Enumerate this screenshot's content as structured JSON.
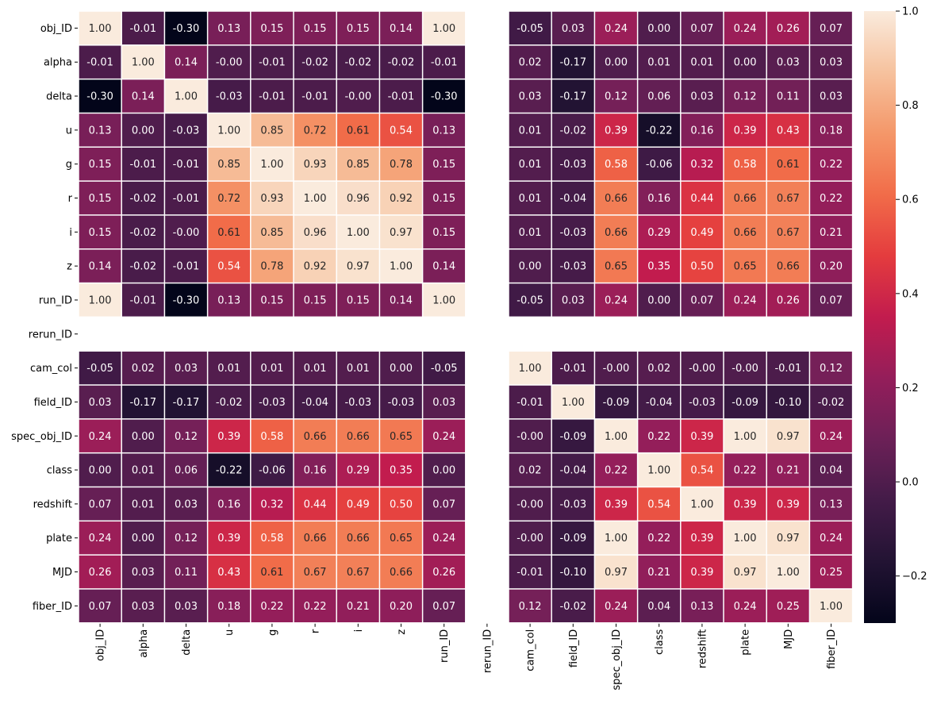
{
  "chart_data": {
    "type": "heatmap",
    "title": "",
    "xlabel": "",
    "ylabel": "",
    "labels": [
      "obj_ID",
      "alpha",
      "delta",
      "u",
      "g",
      "r",
      "i",
      "z",
      "run_ID",
      "rerun_ID",
      "cam_col",
      "field_ID",
      "spec_obj_ID",
      "class",
      "redshift",
      "plate",
      "MJD",
      "fiber_ID"
    ],
    "values": [
      [
        1.0,
        -0.01,
        -0.3,
        0.13,
        0.15,
        0.15,
        0.15,
        0.14,
        1.0,
        null,
        -0.05,
        0.03,
        0.24,
        0.0,
        0.07,
        0.24,
        0.26,
        0.07
      ],
      [
        -0.01,
        1.0,
        0.14,
        -0.0,
        -0.01,
        -0.02,
        -0.02,
        -0.02,
        -0.01,
        null,
        0.02,
        -0.17,
        0.0,
        0.01,
        0.01,
        0.0,
        0.03,
        0.03
      ],
      [
        -0.3,
        0.14,
        1.0,
        -0.03,
        -0.01,
        -0.01,
        -0.0,
        -0.01,
        -0.3,
        null,
        0.03,
        -0.17,
        0.12,
        0.06,
        0.03,
        0.12,
        0.11,
        0.03
      ],
      [
        0.13,
        -0.0,
        -0.03,
        1.0,
        0.85,
        0.72,
        0.61,
        0.54,
        0.13,
        null,
        0.01,
        -0.02,
        0.39,
        -0.22,
        0.16,
        0.39,
        0.43,
        0.18
      ],
      [
        0.15,
        -0.01,
        -0.01,
        0.85,
        1.0,
        0.93,
        0.85,
        0.78,
        0.15,
        null,
        0.01,
        -0.03,
        0.58,
        -0.06,
        0.32,
        0.58,
        0.61,
        0.22
      ],
      [
        0.15,
        -0.02,
        -0.01,
        0.72,
        0.93,
        1.0,
        0.96,
        0.92,
        0.15,
        null,
        0.01,
        -0.04,
        0.66,
        0.16,
        0.44,
        0.66,
        0.67,
        0.22
      ],
      [
        0.15,
        -0.02,
        -0.0,
        0.61,
        0.85,
        0.96,
        1.0,
        0.97,
        0.15,
        null,
        0.01,
        -0.03,
        0.66,
        0.29,
        0.49,
        0.66,
        0.67,
        0.21
      ],
      [
        0.14,
        -0.02,
        -0.01,
        0.54,
        0.78,
        0.92,
        0.97,
        1.0,
        0.14,
        null,
        0.0,
        -0.03,
        0.65,
        0.35,
        0.5,
        0.65,
        0.66,
        0.2
      ],
      [
        1.0,
        -0.01,
        -0.3,
        0.13,
        0.15,
        0.15,
        0.15,
        0.14,
        1.0,
        null,
        -0.05,
        0.03,
        0.24,
        0.0,
        0.07,
        0.24,
        0.26,
        0.07
      ],
      [
        null,
        null,
        null,
        null,
        null,
        null,
        null,
        null,
        null,
        null,
        null,
        null,
        null,
        null,
        null,
        null,
        null,
        null
      ],
      [
        -0.05,
        0.02,
        0.03,
        0.01,
        0.01,
        0.01,
        0.01,
        0.0,
        -0.05,
        null,
        1.0,
        -0.01,
        -0.0,
        0.02,
        -0.0,
        -0.0,
        -0.01,
        0.12
      ],
      [
        0.03,
        -0.17,
        -0.17,
        -0.02,
        -0.03,
        -0.04,
        -0.03,
        -0.03,
        0.03,
        null,
        -0.01,
        1.0,
        -0.09,
        -0.04,
        -0.03,
        -0.09,
        -0.1,
        -0.02
      ],
      [
        0.24,
        0.0,
        0.12,
        0.39,
        0.58,
        0.66,
        0.66,
        0.65,
        0.24,
        null,
        -0.0,
        -0.09,
        1.0,
        0.22,
        0.39,
        1.0,
        0.97,
        0.24
      ],
      [
        0.0,
        0.01,
        0.06,
        -0.22,
        -0.06,
        0.16,
        0.29,
        0.35,
        0.0,
        null,
        0.02,
        -0.04,
        0.22,
        1.0,
        0.54,
        0.22,
        0.21,
        0.04
      ],
      [
        0.07,
        0.01,
        0.03,
        0.16,
        0.32,
        0.44,
        0.49,
        0.5,
        0.07,
        null,
        -0.0,
        -0.03,
        0.39,
        0.54,
        1.0,
        0.39,
        0.39,
        0.13
      ],
      [
        0.24,
        0.0,
        0.12,
        0.39,
        0.58,
        0.66,
        0.66,
        0.65,
        0.24,
        null,
        -0.0,
        -0.09,
        1.0,
        0.22,
        0.39,
        1.0,
        0.97,
        0.24
      ],
      [
        0.26,
        0.03,
        0.11,
        0.43,
        0.61,
        0.67,
        0.67,
        0.66,
        0.26,
        null,
        -0.01,
        -0.1,
        0.97,
        0.21,
        0.39,
        0.97,
        1.0,
        0.25
      ],
      [
        0.07,
        0.03,
        0.03,
        0.18,
        0.22,
        0.22,
        0.21,
        0.2,
        0.07,
        null,
        0.12,
        -0.02,
        0.24,
        0.04,
        0.13,
        0.24,
        0.25,
        1.0
      ]
    ],
    "colorscale": "rocket",
    "vmin": -0.3,
    "vmax": 1.0,
    "colorbar_ticks": [
      "1.0",
      "0.8",
      "0.6",
      "0.4",
      "0.2",
      "0.0",
      "−0.2"
    ],
    "cell_border_color": "#ffffff",
    "annotation_format": "2 decimals"
  }
}
